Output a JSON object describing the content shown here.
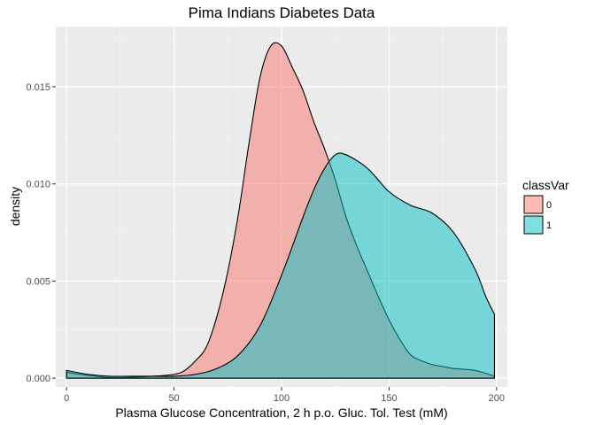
{
  "chart_data": {
    "type": "area",
    "title": "Pima Indians Diabetes Data",
    "xlabel": "Plasma Glucose Concentration, 2 h p.o. Gluc. Tol. Test (mM)",
    "ylabel": "density",
    "xlim": [
      -5,
      205
    ],
    "ylim": [
      -0.00045,
      0.0181
    ],
    "x_ticks": [
      0,
      50,
      100,
      150,
      200
    ],
    "x_tick_labels": [
      "0",
      "50",
      "100",
      "150",
      "200"
    ],
    "y_ticks": [
      0.0,
      0.005,
      0.01,
      0.015
    ],
    "y_tick_labels": [
      "0.000",
      "0.005",
      "0.010",
      "0.015"
    ],
    "grid": true,
    "legend": {
      "title": "classVar",
      "placement": "right",
      "entries": [
        "0",
        "1"
      ]
    },
    "series": [
      {
        "name": "0",
        "color": "#F8766D",
        "x": [
          0,
          10,
          20,
          30,
          40,
          50,
          55,
          60,
          65,
          70,
          75,
          80,
          85,
          90,
          95,
          100,
          105,
          110,
          115,
          120,
          125,
          130,
          135,
          140,
          145,
          150,
          155,
          160,
          165,
          170,
          175,
          180,
          190,
          199
        ],
        "y": [
          0.0003,
          0.00015,
          3e-05,
          5e-05,
          0.0001,
          0.0002,
          0.0004,
          0.0009,
          0.0016,
          0.0032,
          0.0055,
          0.0085,
          0.0122,
          0.0155,
          0.0171,
          0.0171,
          0.016,
          0.0148,
          0.0132,
          0.0118,
          0.0102,
          0.0083,
          0.0068,
          0.0055,
          0.0042,
          0.003,
          0.002,
          0.0012,
          0.0009,
          0.0007,
          0.0006,
          0.0005,
          0.0004,
          0.0001
        ]
      },
      {
        "name": "1",
        "color": "#00BFC4",
        "x": [
          0,
          10,
          20,
          30,
          40,
          50,
          60,
          70,
          80,
          90,
          100,
          110,
          115,
          120,
          125,
          130,
          140,
          150,
          160,
          170,
          180,
          190,
          195,
          199
        ],
        "y": [
          0.0004,
          0.0002,
          0.0001,
          0.0001,
          0.0001,
          0.0001,
          0.0002,
          0.0005,
          0.0012,
          0.0027,
          0.0053,
          0.0083,
          0.0097,
          0.0108,
          0.0115,
          0.0115,
          0.0108,
          0.0096,
          0.0089,
          0.0085,
          0.0075,
          0.0056,
          0.0042,
          0.0033
        ]
      }
    ]
  }
}
